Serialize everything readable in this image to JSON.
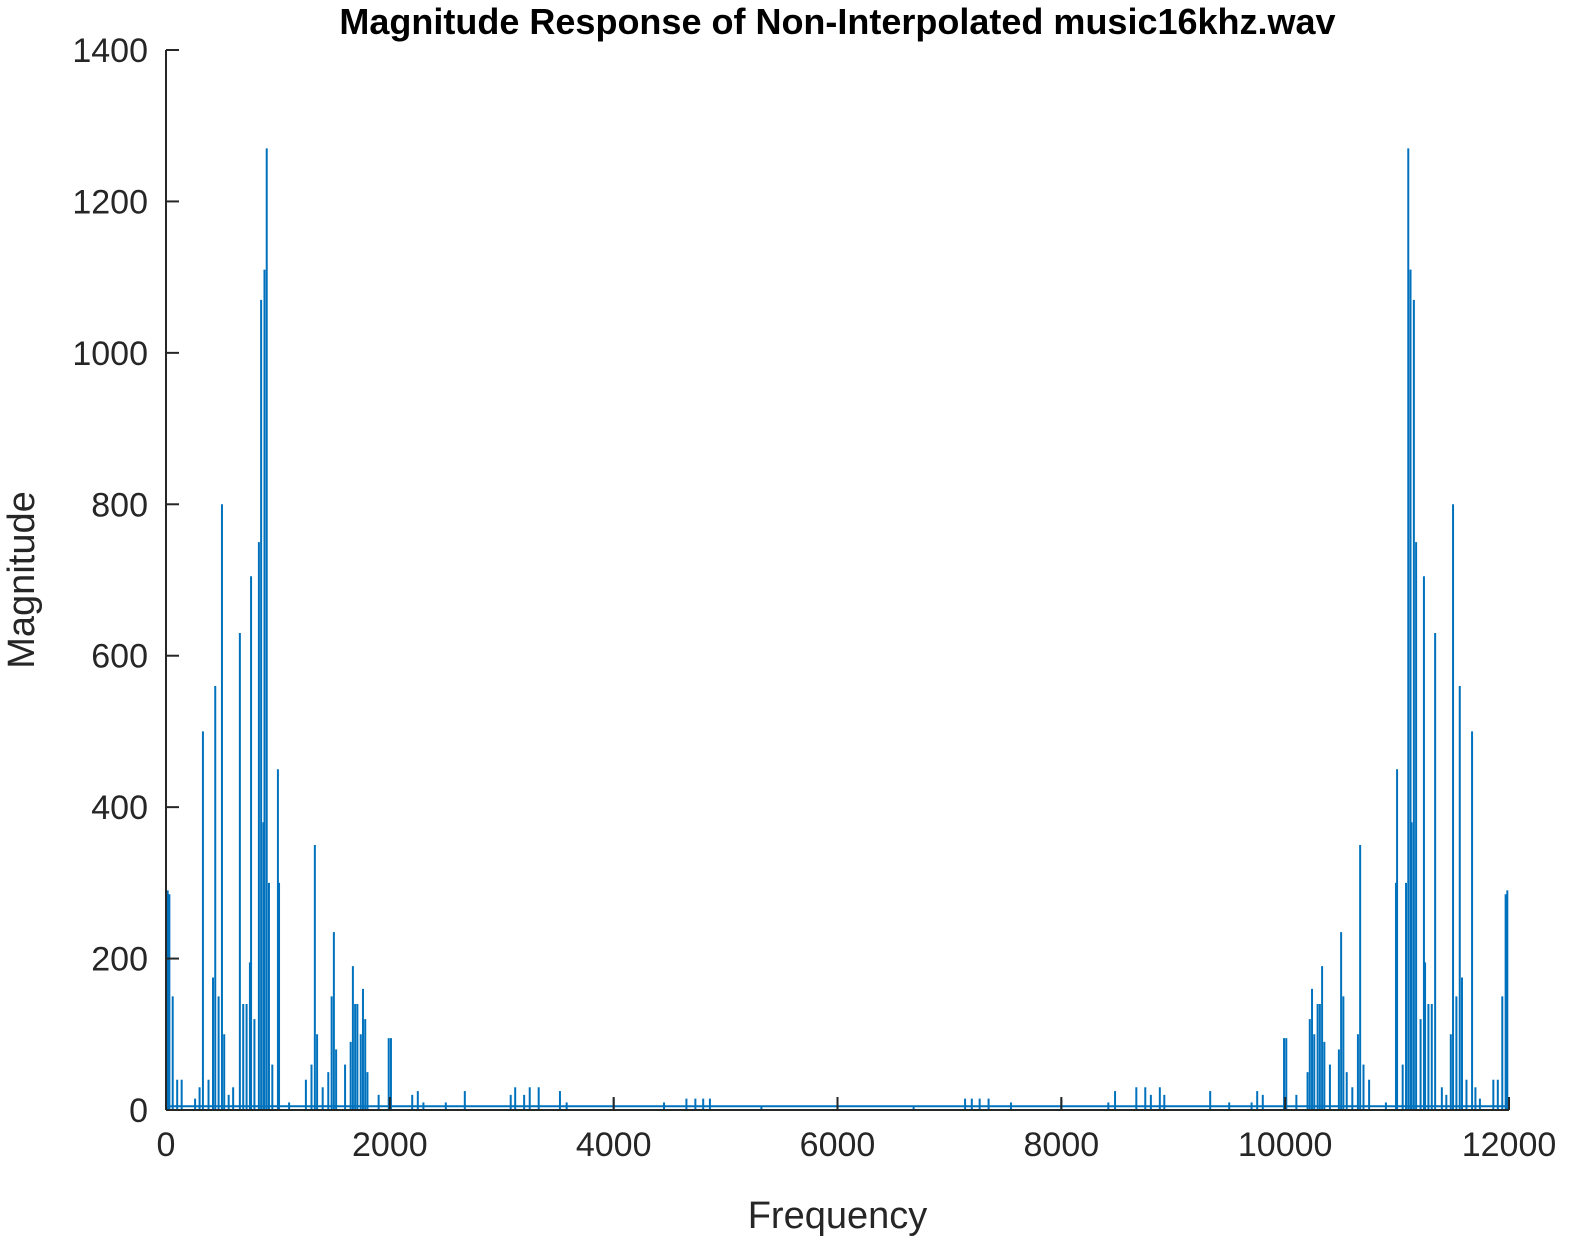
{
  "colors": {
    "series": "#0072BD",
    "axis": "#262626",
    "background": "#ffffff"
  },
  "chart_data": {
    "type": "line",
    "title": "Magnitude Response of Non-Interpolated music16khz.wav",
    "xlabel": "Frequency",
    "ylabel": "Magnitude",
    "xlim": [
      0,
      12000
    ],
    "ylim": [
      0,
      1400
    ],
    "xticks": [
      0,
      2000,
      4000,
      6000,
      8000,
      10000,
      12000
    ],
    "xtick_labels": [
      "0",
      "2000",
      "4000",
      "6000",
      "8000",
      "10000",
      "12000"
    ],
    "yticks": [
      0,
      200,
      400,
      600,
      800,
      1000,
      1200,
      1400
    ],
    "ytick_labels": [
      "0",
      "200",
      "400",
      "600",
      "800",
      "1000",
      "1200",
      "1400"
    ],
    "grid": false,
    "symmetric_about": 6000,
    "series": [
      {
        "spikes": [
          [
            15,
            290
          ],
          [
            30,
            285
          ],
          [
            60,
            150
          ],
          [
            100,
            40
          ],
          [
            140,
            40
          ],
          [
            260,
            15
          ],
          [
            300,
            30
          ],
          [
            330,
            500
          ],
          [
            380,
            40
          ],
          [
            420,
            175
          ],
          [
            440,
            560
          ],
          [
            470,
            150
          ],
          [
            500,
            800
          ],
          [
            520,
            100
          ],
          [
            560,
            20
          ],
          [
            600,
            30
          ],
          [
            660,
            630
          ],
          [
            690,
            140
          ],
          [
            720,
            140
          ],
          [
            750,
            195
          ],
          [
            760,
            705
          ],
          [
            790,
            120
          ],
          [
            830,
            750
          ],
          [
            850,
            1070
          ],
          [
            870,
            380
          ],
          [
            880,
            1110
          ],
          [
            900,
            1270
          ],
          [
            920,
            300
          ],
          [
            950,
            60
          ],
          [
            1000,
            450
          ],
          [
            1010,
            300
          ],
          [
            1100,
            10
          ],
          [
            1250,
            40
          ],
          [
            1300,
            60
          ],
          [
            1330,
            350
          ],
          [
            1350,
            100
          ],
          [
            1400,
            30
          ],
          [
            1450,
            50
          ],
          [
            1480,
            150
          ],
          [
            1500,
            235
          ],
          [
            1520,
            80
          ],
          [
            1600,
            60
          ],
          [
            1650,
            90
          ],
          [
            1670,
            190
          ],
          [
            1690,
            140
          ],
          [
            1710,
            140
          ],
          [
            1740,
            100
          ],
          [
            1760,
            160
          ],
          [
            1780,
            120
          ],
          [
            1800,
            50
          ],
          [
            1900,
            20
          ],
          [
            1990,
            95
          ],
          [
            2010,
            95
          ],
          [
            2200,
            20
          ],
          [
            2250,
            25
          ],
          [
            2300,
            10
          ],
          [
            2500,
            10
          ],
          [
            2670,
            25
          ],
          [
            3080,
            20
          ],
          [
            3120,
            30
          ],
          [
            3200,
            20
          ],
          [
            3250,
            30
          ],
          [
            3330,
            30
          ],
          [
            3520,
            25
          ],
          [
            3580,
            10
          ],
          [
            4000,
            15
          ],
          [
            4450,
            10
          ],
          [
            4650,
            15
          ],
          [
            4730,
            15
          ],
          [
            4800,
            15
          ],
          [
            4860,
            15
          ],
          [
            5320,
            5
          ],
          [
            6000,
            15
          ]
        ],
        "noise_floor": 5
      }
    ]
  }
}
